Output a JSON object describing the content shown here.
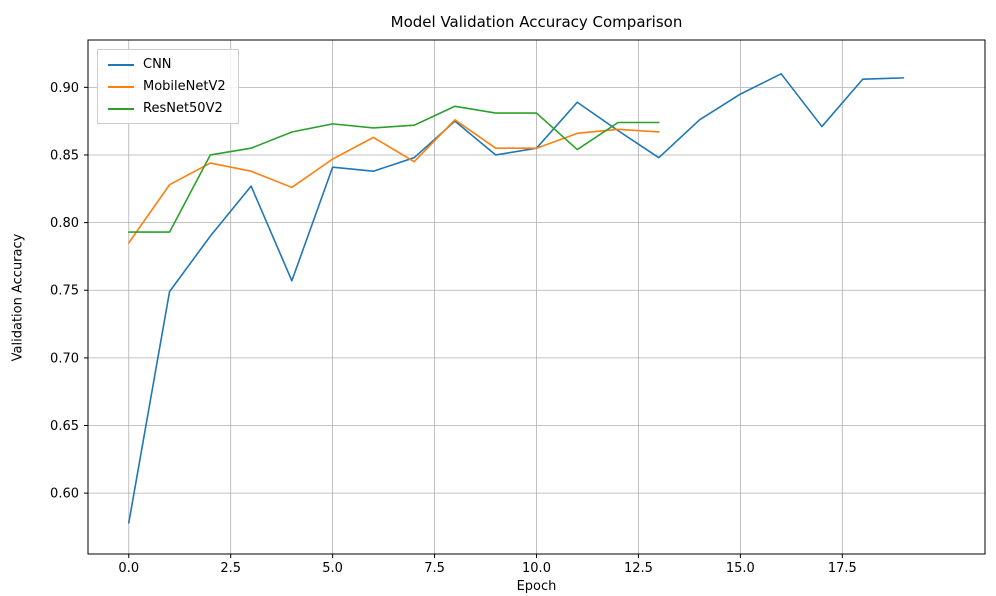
{
  "figure": {
    "background": "#ffffff"
  },
  "chart_data": {
    "type": "line",
    "title": "Model Validation Accuracy Comparison",
    "xlabel": "Epoch",
    "ylabel": "Validation Accuracy",
    "xlim": [
      -1.0,
      21.0
    ],
    "ylim": [
      0.555,
      0.935
    ],
    "xticks": [
      0.0,
      2.5,
      5.0,
      7.5,
      10.0,
      12.5,
      15.0,
      17.5
    ],
    "xtick_labels": [
      "0.0",
      "2.5",
      "5.0",
      "7.5",
      "10.0",
      "12.5",
      "15.0",
      "17.5"
    ],
    "yticks": [
      0.6,
      0.65,
      0.7,
      0.75,
      0.8,
      0.85,
      0.9
    ],
    "ytick_labels": [
      "0.60",
      "0.65",
      "0.70",
      "0.75",
      "0.80",
      "0.85",
      "0.90"
    ],
    "grid": true,
    "grid_color": "#b0b0b0",
    "border_color": "#000000",
    "legend_position": "upper left",
    "series": [
      {
        "name": "CNN",
        "color": "#1f77b4",
        "x": [
          0,
          1,
          2,
          3,
          4,
          5,
          6,
          7,
          8,
          9,
          10,
          11,
          12,
          13,
          14,
          15,
          16,
          17,
          18,
          19
        ],
        "y": [
          0.578,
          0.749,
          0.79,
          0.827,
          0.757,
          0.841,
          0.838,
          0.848,
          0.875,
          0.85,
          0.855,
          0.889,
          0.868,
          0.848,
          0.876,
          0.895,
          0.91,
          0.871,
          0.906,
          0.907
        ]
      },
      {
        "name": "MobileNetV2",
        "color": "#ff7f0e",
        "x": [
          0,
          1,
          2,
          3,
          4,
          5,
          6,
          7,
          8,
          9,
          10,
          11,
          12,
          13
        ],
        "y": [
          0.785,
          0.828,
          0.844,
          0.838,
          0.826,
          0.847,
          0.863,
          0.845,
          0.876,
          0.855,
          0.855,
          0.866,
          0.869,
          0.867
        ]
      },
      {
        "name": "ResNet50V2",
        "color": "#2ca02c",
        "x": [
          0,
          1,
          2,
          3,
          4,
          5,
          6,
          7,
          8,
          9,
          10,
          11,
          12,
          13
        ],
        "y": [
          0.793,
          0.793,
          0.85,
          0.855,
          0.867,
          0.873,
          0.87,
          0.872,
          0.886,
          0.881,
          0.881,
          0.854,
          0.874,
          0.874
        ]
      }
    ]
  }
}
